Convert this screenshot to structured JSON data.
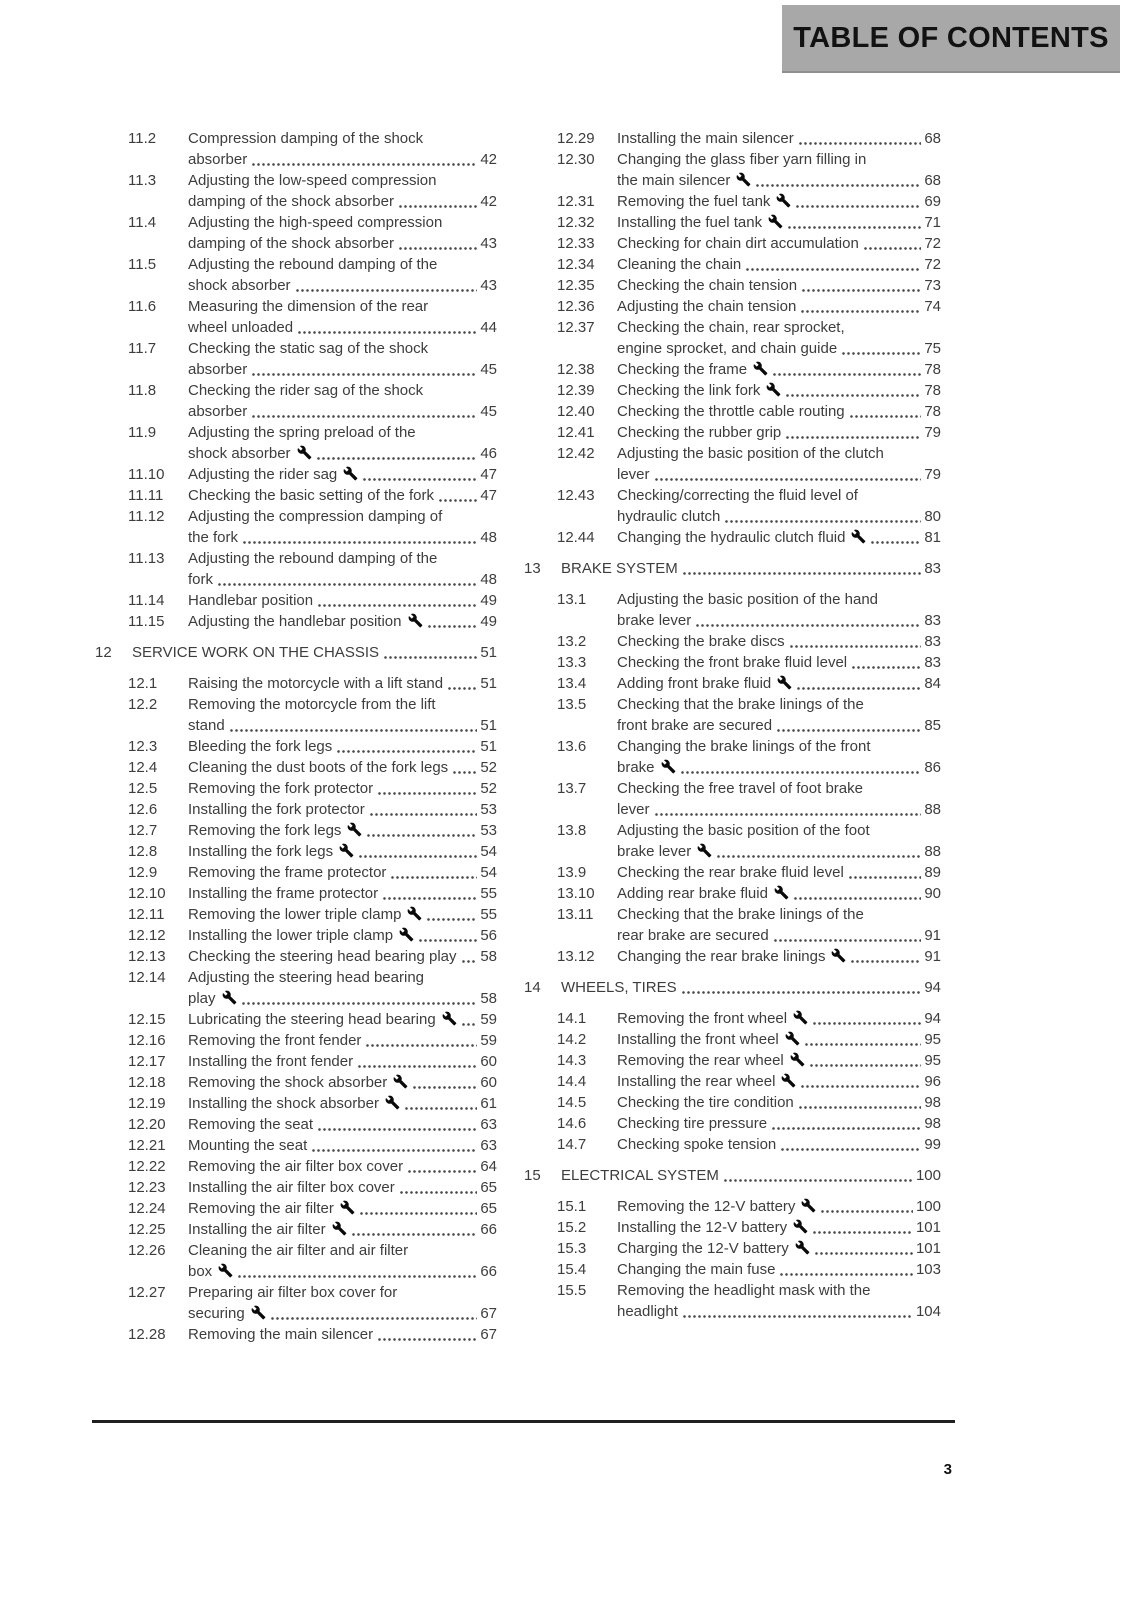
{
  "page": {
    "header_title": "TABLE OF CONTENTS",
    "page_number": "3",
    "colors": {
      "header_bg": "#a8a8a8",
      "header_text": "#121212",
      "body_text": "#3d3d3d",
      "wrench_icon": "#0a0a0a"
    },
    "icons": {
      "wrench": "wrench-icon"
    }
  },
  "toc": {
    "columns": [
      {
        "entries": [
          {
            "num": "11.2",
            "lines": [
              "Compression damping of the shock",
              "absorber"
            ],
            "page": "42"
          },
          {
            "num": "11.3",
            "lines": [
              "Adjusting the low-speed compression",
              "damping of the shock absorber"
            ],
            "page": "42"
          },
          {
            "num": "11.4",
            "lines": [
              "Adjusting the high-speed compression",
              "damping of the shock absorber"
            ],
            "page": "43"
          },
          {
            "num": "11.5",
            "lines": [
              "Adjusting the rebound damping of the",
              "shock absorber"
            ],
            "page": "43"
          },
          {
            "num": "11.6",
            "lines": [
              "Measuring the dimension of the rear",
              "wheel unloaded"
            ],
            "page": "44"
          },
          {
            "num": "11.7",
            "lines": [
              "Checking the static sag of the shock",
              "absorber"
            ],
            "page": "45"
          },
          {
            "num": "11.8",
            "lines": [
              "Checking the rider sag of the shock",
              "absorber"
            ],
            "page": "45"
          },
          {
            "num": "11.9",
            "lines": [
              "Adjusting the spring preload of the",
              "shock absorber"
            ],
            "page": "46",
            "wrench": true
          },
          {
            "num": "11.10",
            "lines": [
              "Adjusting the rider sag"
            ],
            "page": "47",
            "wrench": true
          },
          {
            "num": "11.11",
            "lines": [
              "Checking the basic setting of the fork"
            ],
            "page": "47"
          },
          {
            "num": "11.12",
            "lines": [
              "Adjusting the compression damping of",
              "the fork"
            ],
            "page": "48"
          },
          {
            "num": "11.13",
            "lines": [
              "Adjusting the rebound damping of the",
              "fork"
            ],
            "page": "48"
          },
          {
            "num": "11.14",
            "lines": [
              "Handlebar position"
            ],
            "page": "49"
          },
          {
            "num": "11.15",
            "lines": [
              "Adjusting the handlebar position"
            ],
            "page": "49",
            "wrench": true
          },
          {
            "num": "12",
            "lines": [
              "SERVICE WORK ON THE CHASSIS"
            ],
            "page": "51",
            "chapter": true
          },
          {
            "num": "12.1",
            "lines": [
              "Raising the motorcycle with a lift stand"
            ],
            "page": "51"
          },
          {
            "num": "12.2",
            "lines": [
              "Removing the motorcycle from the lift",
              "stand"
            ],
            "page": "51"
          },
          {
            "num": "12.3",
            "lines": [
              "Bleeding the fork legs"
            ],
            "page": "51"
          },
          {
            "num": "12.4",
            "lines": [
              "Cleaning the dust boots of the fork legs"
            ],
            "page": "52"
          },
          {
            "num": "12.5",
            "lines": [
              "Removing the fork protector"
            ],
            "page": "52"
          },
          {
            "num": "12.6",
            "lines": [
              "Installing the fork protector"
            ],
            "page": "53"
          },
          {
            "num": "12.7",
            "lines": [
              "Removing the fork legs"
            ],
            "page": "53",
            "wrench": true
          },
          {
            "num": "12.8",
            "lines": [
              "Installing the fork legs"
            ],
            "page": "54",
            "wrench": true
          },
          {
            "num": "12.9",
            "lines": [
              "Removing the frame protector"
            ],
            "page": "54"
          },
          {
            "num": "12.10",
            "lines": [
              "Installing the frame protector"
            ],
            "page": "55"
          },
          {
            "num": "12.11",
            "lines": [
              "Removing the lower triple clamp"
            ],
            "page": "55",
            "wrench": true
          },
          {
            "num": "12.12",
            "lines": [
              "Installing the lower triple clamp"
            ],
            "page": "56",
            "wrench": true
          },
          {
            "num": "12.13",
            "lines": [
              "Checking the steering head bearing play"
            ],
            "page": "58"
          },
          {
            "num": "12.14",
            "lines": [
              "Adjusting the steering head bearing",
              "play"
            ],
            "page": "58",
            "wrench": true
          },
          {
            "num": "12.15",
            "lines": [
              "Lubricating the steering head bearing"
            ],
            "page": "59",
            "wrench": true
          },
          {
            "num": "12.16",
            "lines": [
              "Removing the front fender"
            ],
            "page": "59"
          },
          {
            "num": "12.17",
            "lines": [
              "Installing the front fender"
            ],
            "page": "60"
          },
          {
            "num": "12.18",
            "lines": [
              "Removing the shock absorber"
            ],
            "page": "60",
            "wrench": true
          },
          {
            "num": "12.19",
            "lines": [
              "Installing the shock absorber"
            ],
            "page": "61",
            "wrench": true
          },
          {
            "num": "12.20",
            "lines": [
              "Removing the seat"
            ],
            "page": "63"
          },
          {
            "num": "12.21",
            "lines": [
              "Mounting the seat"
            ],
            "page": "63"
          },
          {
            "num": "12.22",
            "lines": [
              "Removing the air filter box cover"
            ],
            "page": "64"
          },
          {
            "num": "12.23",
            "lines": [
              "Installing the air filter box cover"
            ],
            "page": "65"
          },
          {
            "num": "12.24",
            "lines": [
              "Removing the air filter"
            ],
            "page": "65",
            "wrench": true
          },
          {
            "num": "12.25",
            "lines": [
              "Installing the air filter"
            ],
            "page": "66",
            "wrench": true
          },
          {
            "num": "12.26",
            "lines": [
              "Cleaning the air filter and air filter",
              "box"
            ],
            "page": "66",
            "wrench": true
          },
          {
            "num": "12.27",
            "lines": [
              "Preparing air filter box cover for",
              "securing"
            ],
            "page": "67",
            "wrench": true
          },
          {
            "num": "12.28",
            "lines": [
              "Removing the main silencer"
            ],
            "page": "67"
          }
        ]
      },
      {
        "entries": [
          {
            "num": "12.29",
            "lines": [
              "Installing the main silencer"
            ],
            "page": "68"
          },
          {
            "num": "12.30",
            "lines": [
              "Changing the glass fiber yarn filling in",
              "the main silencer"
            ],
            "page": "68",
            "wrench": true
          },
          {
            "num": "12.31",
            "lines": [
              "Removing the fuel tank"
            ],
            "page": "69",
            "wrench": true
          },
          {
            "num": "12.32",
            "lines": [
              "Installing the fuel tank"
            ],
            "page": "71",
            "wrench": true
          },
          {
            "num": "12.33",
            "lines": [
              "Checking for chain dirt accumulation"
            ],
            "page": "72"
          },
          {
            "num": "12.34",
            "lines": [
              "Cleaning the chain"
            ],
            "page": "72"
          },
          {
            "num": "12.35",
            "lines": [
              "Checking the chain tension"
            ],
            "page": "73"
          },
          {
            "num": "12.36",
            "lines": [
              "Adjusting the chain tension"
            ],
            "page": "74"
          },
          {
            "num": "12.37",
            "lines": [
              "Checking the chain, rear sprocket,",
              "engine sprocket, and chain guide"
            ],
            "page": "75"
          },
          {
            "num": "12.38",
            "lines": [
              "Checking the frame"
            ],
            "page": "78",
            "wrench": true
          },
          {
            "num": "12.39",
            "lines": [
              "Checking the link fork"
            ],
            "page": "78",
            "wrench": true
          },
          {
            "num": "12.40",
            "lines": [
              "Checking the throttle cable routing"
            ],
            "page": "78"
          },
          {
            "num": "12.41",
            "lines": [
              "Checking the rubber grip"
            ],
            "page": "79"
          },
          {
            "num": "12.42",
            "lines": [
              "Adjusting the basic position of the clutch",
              "lever"
            ],
            "page": "79"
          },
          {
            "num": "12.43",
            "lines": [
              "Checking/correcting the fluid level of",
              "hydraulic clutch"
            ],
            "page": "80"
          },
          {
            "num": "12.44",
            "lines": [
              "Changing the hydraulic clutch fluid"
            ],
            "page": "81",
            "wrench": true
          },
          {
            "num": "13",
            "lines": [
              "BRAKE SYSTEM"
            ],
            "page": "83",
            "chapter": true
          },
          {
            "num": "13.1",
            "lines": [
              "Adjusting the basic position of the hand",
              "brake lever"
            ],
            "page": "83"
          },
          {
            "num": "13.2",
            "lines": [
              "Checking the brake discs"
            ],
            "page": "83"
          },
          {
            "num": "13.3",
            "lines": [
              "Checking the front brake fluid level"
            ],
            "page": "83"
          },
          {
            "num": "13.4",
            "lines": [
              "Adding front brake fluid"
            ],
            "page": "84",
            "wrench": true
          },
          {
            "num": "13.5",
            "lines": [
              "Checking that the brake linings of the",
              "front brake are secured"
            ],
            "page": "85"
          },
          {
            "num": "13.6",
            "lines": [
              "Changing the brake linings of the front",
              "brake"
            ],
            "page": "86",
            "wrench": true
          },
          {
            "num": "13.7",
            "lines": [
              "Checking the free travel of foot brake",
              "lever"
            ],
            "page": "88"
          },
          {
            "num": "13.8",
            "lines": [
              "Adjusting the basic position of the foot",
              "brake lever"
            ],
            "page": "88",
            "wrench": true
          },
          {
            "num": "13.9",
            "lines": [
              "Checking the rear brake fluid level"
            ],
            "page": "89"
          },
          {
            "num": "13.10",
            "lines": [
              "Adding rear brake fluid"
            ],
            "page": "90",
            "wrench": true
          },
          {
            "num": "13.11",
            "lines": [
              "Checking that the brake linings of the",
              "rear brake are secured"
            ],
            "page": "91"
          },
          {
            "num": "13.12",
            "lines": [
              "Changing the rear brake linings"
            ],
            "page": "91",
            "wrench": true
          },
          {
            "num": "14",
            "lines": [
              "WHEELS, TIRES"
            ],
            "page": "94",
            "chapter": true
          },
          {
            "num": "14.1",
            "lines": [
              "Removing the front wheel"
            ],
            "page": "94",
            "wrench": true
          },
          {
            "num": "14.2",
            "lines": [
              "Installing the front wheel"
            ],
            "page": "95",
            "wrench": true
          },
          {
            "num": "14.3",
            "lines": [
              "Removing the rear wheel"
            ],
            "page": "95",
            "wrench": true
          },
          {
            "num": "14.4",
            "lines": [
              "Installing the rear wheel"
            ],
            "page": "96",
            "wrench": true
          },
          {
            "num": "14.5",
            "lines": [
              "Checking the tire condition"
            ],
            "page": "98"
          },
          {
            "num": "14.6",
            "lines": [
              "Checking tire pressure"
            ],
            "page": "98"
          },
          {
            "num": "14.7",
            "lines": [
              "Checking spoke tension"
            ],
            "page": "99"
          },
          {
            "num": "15",
            "lines": [
              "ELECTRICAL SYSTEM"
            ],
            "page": "100",
            "chapter": true
          },
          {
            "num": "15.1",
            "lines": [
              "Removing the 12-V battery"
            ],
            "page": "100",
            "wrench": true
          },
          {
            "num": "15.2",
            "lines": [
              "Installing the 12-V battery"
            ],
            "page": "101",
            "wrench": true
          },
          {
            "num": "15.3",
            "lines": [
              "Charging the 12-V battery"
            ],
            "page": "101",
            "wrench": true
          },
          {
            "num": "15.4",
            "lines": [
              "Changing the main fuse"
            ],
            "page": "103"
          },
          {
            "num": "15.5",
            "lines": [
              "Removing the headlight mask with the",
              "headlight"
            ],
            "page": "104"
          }
        ]
      }
    ]
  }
}
